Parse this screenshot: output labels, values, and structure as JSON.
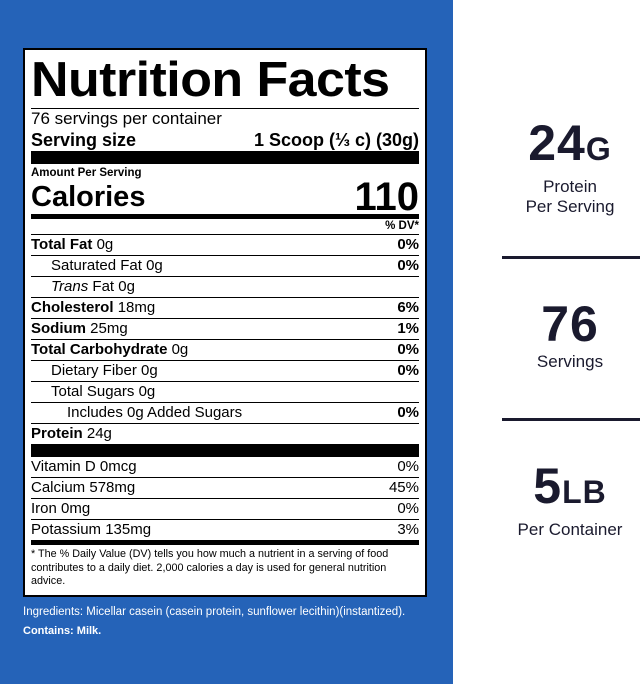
{
  "label": {
    "title": "Nutrition Facts",
    "servings_per_container": "76 servings per container",
    "serving_size_label": "Serving size",
    "serving_size_value": "1 Scoop (⅓ c) (30g)",
    "amount_per_serving": "Amount Per Serving",
    "calories_label": "Calories",
    "calories_value": "110",
    "dv_header": "% DV*",
    "nutrients": [
      {
        "name": "Total Fat",
        "amount": "0g",
        "dv": "0%"
      },
      {
        "name": "Saturated Fat",
        "amount": "0g",
        "dv": "0%"
      },
      {
        "name": "Trans",
        "suffix": "Fat",
        "amount": "0g",
        "dv": ""
      },
      {
        "name": "Cholesterol",
        "amount": "18mg",
        "dv": "6%"
      },
      {
        "name": "Sodium",
        "amount": "25mg",
        "dv": "1%"
      },
      {
        "name": "Total Carbohydrate",
        "amount": "0g",
        "dv": "0%"
      },
      {
        "name": "Dietary Fiber",
        "amount": "0g",
        "dv": "0%"
      },
      {
        "name": "Total Sugars",
        "amount": "0g",
        "dv": ""
      },
      {
        "name": "Includes 0g Added Sugars",
        "amount": "",
        "dv": "0%"
      },
      {
        "name": "Protein",
        "amount": "24g",
        "dv": ""
      }
    ],
    "vitamins": [
      {
        "name": "Vitamin D",
        "amount": "0mcg",
        "dv": "0%"
      },
      {
        "name": "Calcium",
        "amount": "578mg",
        "dv": "45%"
      },
      {
        "name": "Iron",
        "amount": "0mg",
        "dv": "0%"
      },
      {
        "name": "Potassium",
        "amount": "135mg",
        "dv": "3%"
      }
    ],
    "footnote": "* The % Daily Value (DV) tells you how much a nutrient in a serving of food contributes to a daily diet. 2,000 calories a day is used for general nutrition advice."
  },
  "ingredients": "Ingredients: Micellar casein (casein protein, sunflower lecithin)(instantized).",
  "contains": "Contains: Milk.",
  "stats": [
    {
      "value": "24",
      "unit": "G",
      "caption_line1": "Protein",
      "caption_line2": "Per Serving"
    },
    {
      "value": "76",
      "unit": "",
      "caption_line1": "Servings",
      "caption_line2": ""
    },
    {
      "value": "5",
      "unit": "LB",
      "caption_line1": "Per Container",
      "caption_line2": ""
    }
  ],
  "colors": {
    "panel_blue": "#2563b8",
    "stat_text": "#1a1a2e"
  }
}
